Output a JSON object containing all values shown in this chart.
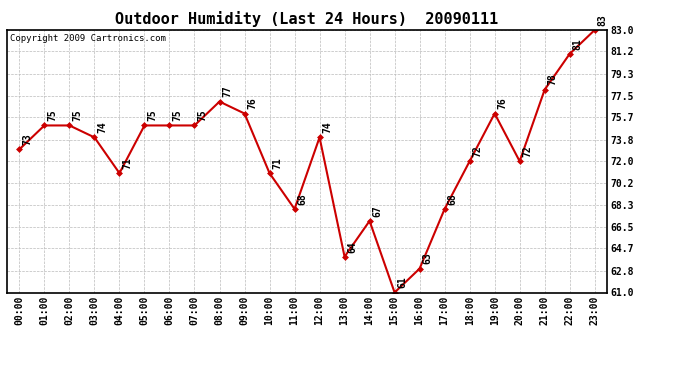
{
  "title": "Outdoor Humidity (Last 24 Hours)  20090111",
  "copyright": "Copyright 2009 Cartronics.com",
  "x_labels": [
    "00:00",
    "01:00",
    "02:00",
    "03:00",
    "04:00",
    "05:00",
    "06:00",
    "07:00",
    "08:00",
    "09:00",
    "10:00",
    "11:00",
    "12:00",
    "13:00",
    "14:00",
    "15:00",
    "16:00",
    "17:00",
    "18:00",
    "19:00",
    "20:00",
    "21:00",
    "22:00",
    "23:00"
  ],
  "y_values": [
    73,
    75,
    75,
    74,
    71,
    75,
    75,
    75,
    77,
    76,
    71,
    68,
    74,
    64,
    67,
    61,
    63,
    68,
    72,
    76,
    72,
    78,
    81,
    83
  ],
  "point_labels": [
    "73",
    "75",
    "75",
    "74",
    "71",
    "75",
    "75",
    "75",
    "77",
    "76",
    "71",
    "68",
    "74",
    "64",
    "67",
    "61",
    "63",
    "68",
    "72",
    "76",
    "72",
    "78",
    "81",
    "83"
  ],
  "line_color": "#cc0000",
  "marker_color": "#cc0000",
  "bg_color": "#ffffff",
  "grid_color": "#bbbbbb",
  "ylim_min": 61.0,
  "ylim_max": 83.0,
  "yticks": [
    61.0,
    62.8,
    64.7,
    66.5,
    68.3,
    70.2,
    72.0,
    73.8,
    75.7,
    77.5,
    79.3,
    81.2,
    83.0
  ],
  "ytick_labels": [
    "61.0",
    "62.8",
    "64.7",
    "66.5",
    "68.3",
    "70.2",
    "72.0",
    "73.8",
    "75.7",
    "77.5",
    "79.3",
    "81.2",
    "83.0"
  ],
  "title_fontsize": 11,
  "label_fontsize": 7,
  "tick_fontsize": 7,
  "copyright_fontsize": 6.5
}
